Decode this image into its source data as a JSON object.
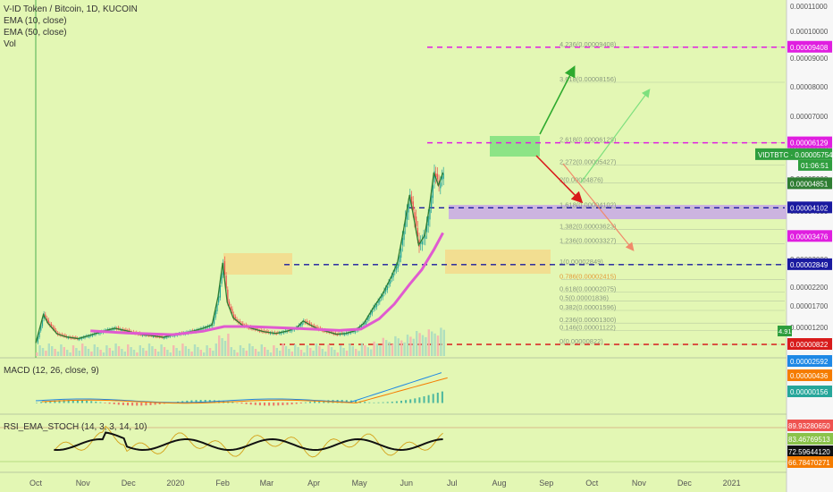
{
  "header": {
    "title": "V-ID Token / Bitcoin, 1D, KUCOIN",
    "indicators": [
      "EMA (10, close)",
      "EMA (50, close)",
      "Vol"
    ]
  },
  "macd_label": "MACD (12, 26, close, 9)",
  "rsi_label": "RSI_EMA_STOCH (14, 3, 3, 14, 10)",
  "colors": {
    "background": "#e3f7b4",
    "up": "#26a69a",
    "down": "#ef5350",
    "ema10": "#2e7d32",
    "ema50": "#e05ad0",
    "dash_blue": "#1a1aa0",
    "dash_red": "#d81b1b",
    "dash_magenta": "#e01ee0",
    "yellow_box": "#f5d98b",
    "purple_box": "#c8a8e8",
    "green_box": "#7ee07e"
  },
  "chart_data": [
    {
      "type": "line",
      "name": "price",
      "x_ticks": [
        "Oct",
        "Nov",
        "Dec",
        "2020",
        "Feb",
        "Mar",
        "Apr",
        "May",
        "Jun",
        "Jul",
        "Aug",
        "Sep",
        "Oct",
        "Nov",
        "Dec",
        "2021"
      ],
      "y_ticks": [
        "0.00011000",
        "0.00010000",
        "0.00009000",
        "0.00008000",
        "0.00007000",
        "0.00006000",
        "0.00005000",
        "0.00004000",
        "0.00003000",
        "0.00002200",
        "0.00001700",
        "0.00001200"
      ],
      "close_path": [
        [
          0,
          8.5e-06
        ],
        [
          5,
          1.5e-05
        ],
        [
          8,
          1.3e-05
        ],
        [
          14,
          1.05e-05
        ],
        [
          20,
          9.8e-06
        ],
        [
          28,
          9.4e-06
        ],
        [
          36,
          1.02e-05
        ],
        [
          45,
          1.12e-05
        ],
        [
          52,
          1.18e-05
        ],
        [
          60,
          1.12e-05
        ],
        [
          68,
          1.04e-05
        ],
        [
          76,
          1.01e-05
        ],
        [
          84,
          9.7e-06
        ],
        [
          90,
          1.02e-05
        ],
        [
          96,
          1.06e-05
        ],
        [
          104,
          1.12e-05
        ],
        [
          110,
          1.18e-05
        ],
        [
          116,
          1.26e-05
        ],
        [
          120,
          1.95e-05
        ],
        [
          123,
          2.9e-05
        ],
        [
          126,
          1.8e-05
        ],
        [
          130,
          1.42e-05
        ],
        [
          136,
          1.25e-05
        ],
        [
          142,
          1.18e-05
        ],
        [
          150,
          1.1e-05
        ],
        [
          158,
          1.06e-05
        ],
        [
          166,
          1.12e-05
        ],
        [
          172,
          1.2e-05
        ],
        [
          176,
          1.35e-05
        ],
        [
          180,
          1.27e-05
        ],
        [
          186,
          1.16e-05
        ],
        [
          192,
          1.1e-05
        ],
        [
          198,
          1.04e-05
        ],
        [
          204,
          1.06e-05
        ],
        [
          210,
          1.12e-05
        ],
        [
          216,
          1.3e-05
        ],
        [
          222,
          1.65e-05
        ],
        [
          228,
          2e-05
        ],
        [
          234,
          2.5e-05
        ],
        [
          238,
          2.9e-05
        ],
        [
          242,
          3.6e-05
        ],
        [
          246,
          4.5e-05
        ],
        [
          248,
          4e-05
        ],
        [
          252,
          3.3e-05
        ],
        [
          256,
          3.5e-05
        ],
        [
          259,
          4.1e-05
        ],
        [
          262,
          5.2e-05
        ],
        [
          265,
          4.8e-05
        ],
        [
          268,
          5.2e-05
        ]
      ],
      "ema50_path": [
        [
          36,
          1.12e-05
        ],
        [
          60,
          1.07e-05
        ],
        [
          90,
          1.03e-05
        ],
        [
          110,
          1.11e-05
        ],
        [
          124,
          1.22e-05
        ],
        [
          140,
          1.22e-05
        ],
        [
          170,
          1.18e-05
        ],
        [
          200,
          1.13e-05
        ],
        [
          214,
          1.16e-05
        ],
        [
          226,
          1.4e-05
        ],
        [
          236,
          1.75e-05
        ],
        [
          246,
          2.28e-05
        ],
        [
          254,
          2.7e-05
        ],
        [
          262,
          3.2e-05
        ],
        [
          268,
          3.55e-05
        ]
      ],
      "right_axis_tags": [
        {
          "label": "0.00009408",
          "value": 9.408e-05,
          "color": "#e01ee0"
        },
        {
          "label": "0.00006129",
          "value": 6.129e-05,
          "color": "#e01ee0"
        },
        {
          "label": "0.00004851",
          "value": 4.851e-05,
          "color": "#2e7d32"
        },
        {
          "label": "0.00004102",
          "value": 4.102e-05,
          "color": "#1a1aa0"
        },
        {
          "label": "0.00003476",
          "value": 3.476e-05,
          "color": "#e01ee0"
        },
        {
          "label": "0.00002849",
          "value": 2.849e-05,
          "color": "#1a1aa0"
        },
        {
          "label": "0.00000822",
          "value": 8.22e-06,
          "color": "#d81b1b"
        }
      ],
      "current_tag": {
        "symbol": "VIDTBTC",
        "value": "0.00005754",
        "countdown": "01:06:51"
      },
      "small_tags": [
        "4.91"
      ],
      "fib_levels": [
        {
          "label": "4.236(0.00009408)",
          "value": 9.408e-05
        },
        {
          "label": "3.618(0.00008156)",
          "value": 8.156e-05
        },
        {
          "label": "2.618(0.00006129)",
          "value": 6.129e-05
        },
        {
          "label": "2.272(0.00005427)",
          "value": 5.427e-05
        },
        {
          "label": "2(0.00004876)",
          "value": 4.876e-05
        },
        {
          "label": "1.618(0.00004102)",
          "value": 4.102e-05
        },
        {
          "label": "1.382(0.00003623)",
          "value": 3.623e-05
        },
        {
          "label": "1.236(0.00003327)",
          "value": 3.327e-05
        },
        {
          "label": "1(0.00002849)",
          "value": 2.849e-05
        },
        {
          "label": "0.786(0.00002415)",
          "value": 2.415e-05
        },
        {
          "label": "0.618(0.00002075)",
          "value": 2.075e-05
        },
        {
          "label": "0.5(0.00001836)",
          "value": 1.836e-05
        },
        {
          "label": "0.382(0.00001596)",
          "value": 1.596e-05
        },
        {
          "label": "0.236(0.00001300)",
          "value": 1.3e-05
        },
        {
          "label": "0.146(0.00001122)",
          "value": 1.122e-05
        },
        {
          "label": "0(0.00000822)",
          "value": 8.22e-06
        }
      ],
      "dashed_levels": [
        {
          "value": 9.408e-05,
          "color": "#e01ee0"
        },
        {
          "value": 6.129e-05,
          "color": "#e01ee0"
        },
        {
          "value": 4.102e-05,
          "color": "#1a1aa0"
        },
        {
          "value": 2.849e-05,
          "color": "#1a1aa0"
        },
        {
          "value": 8.22e-06,
          "color": "#d81b1b"
        }
      ]
    },
    {
      "type": "area",
      "name": "MACD",
      "right_axis_tags": [
        {
          "label": "0.00002592",
          "color": "#1e88e5"
        },
        {
          "label": "0.00000436",
          "color": "#f57c00"
        },
        {
          "label": "0.00000156",
          "color": "#26a69a"
        }
      ]
    },
    {
      "type": "line",
      "name": "RSI_EMA_STOCH",
      "right_axis_tags": [
        {
          "label": "89.93280650",
          "color": "#ef5350"
        },
        {
          "label": "83.46769513",
          "color": "#8bc34a"
        },
        {
          "label": "72.59644120",
          "color": "#111111"
        },
        {
          "label": "66.78470271",
          "color": "#f57c00"
        }
      ]
    }
  ]
}
